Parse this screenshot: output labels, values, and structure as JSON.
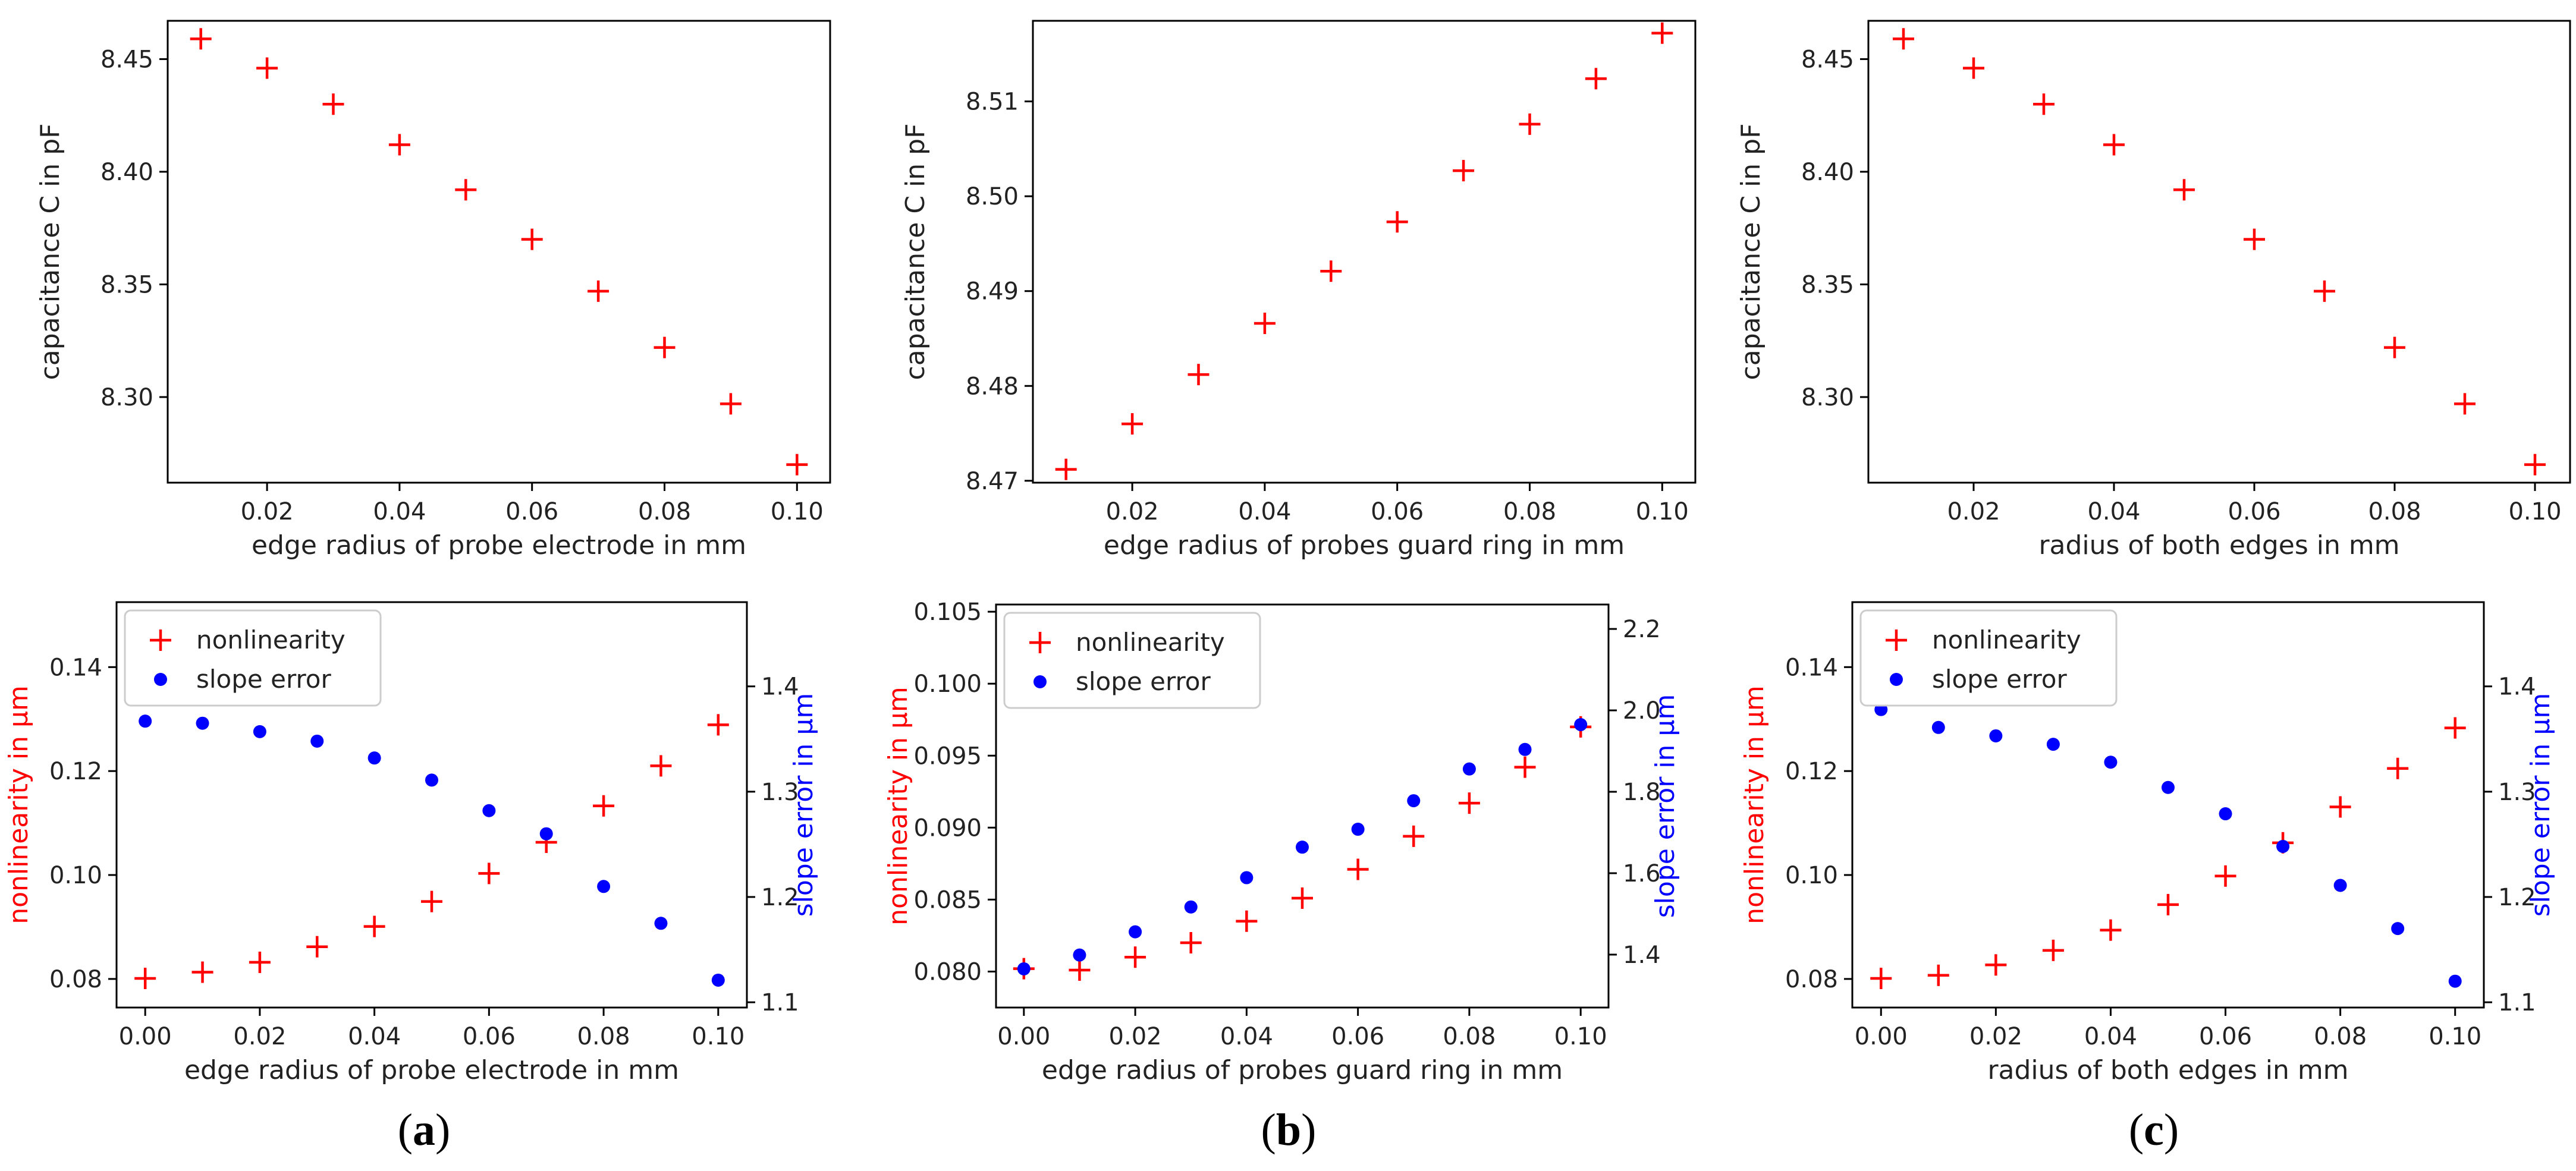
{
  "colors": {
    "nonlinearity": "#ff0000",
    "slope": "#0000ff",
    "axis": "#000000"
  },
  "panel_labels": [
    "a",
    "b",
    "c"
  ],
  "chart_data": [
    {
      "type": "scatter",
      "panel": "a-top",
      "title": "",
      "xlabel": "edge radius of probe electrode in mm",
      "ylabel": "capacitance C in pF",
      "xlim": [
        0.005,
        0.105
      ],
      "ylim": [
        8.262,
        8.467
      ],
      "xticks": [
        0.02,
        0.04,
        0.06,
        0.08,
        0.1
      ],
      "xtick_labels": [
        "0.02",
        "0.04",
        "0.06",
        "0.08",
        "0.10"
      ],
      "yticks": [
        8.3,
        8.35,
        8.4,
        8.45
      ],
      "ytick_labels": [
        "8.30",
        "8.35",
        "8.40",
        "8.45"
      ],
      "grid": false,
      "marker": "+",
      "x": [
        0.01,
        0.02,
        0.03,
        0.04,
        0.05,
        0.06,
        0.07,
        0.08,
        0.09,
        0.1
      ],
      "y": [
        8.459,
        8.446,
        8.43,
        8.412,
        8.392,
        8.37,
        8.347,
        8.322,
        8.297,
        8.27
      ]
    },
    {
      "type": "scatter",
      "panel": "b-top",
      "title": "",
      "xlabel": "edge radius of probes guard ring in mm",
      "ylabel": "capacitance C in pF",
      "xlim": [
        0.005,
        0.105
      ],
      "ylim": [
        8.4698,
        8.5185
      ],
      "xticks": [
        0.02,
        0.04,
        0.06,
        0.08,
        0.1
      ],
      "xtick_labels": [
        "0.02",
        "0.04",
        "0.06",
        "0.08",
        "0.10"
      ],
      "yticks": [
        8.47,
        8.48,
        8.49,
        8.5,
        8.51
      ],
      "ytick_labels": [
        "8.47",
        "8.48",
        "8.49",
        "8.50",
        "8.51"
      ],
      "grid": false,
      "marker": "+",
      "x": [
        0.01,
        0.02,
        0.03,
        0.04,
        0.05,
        0.06,
        0.07,
        0.08,
        0.09,
        0.1
      ],
      "y": [
        8.4712,
        8.476,
        8.4812,
        8.4866,
        8.4921,
        8.4973,
        8.5027,
        8.5076,
        8.5124,
        8.5172
      ]
    },
    {
      "type": "scatter",
      "panel": "c-top",
      "title": "",
      "xlabel": "radius of both edges in mm",
      "ylabel": "capacitance C in pF",
      "xlim": [
        0.005,
        0.105
      ],
      "ylim": [
        8.262,
        8.467
      ],
      "xticks": [
        0.02,
        0.04,
        0.06,
        0.08,
        0.1
      ],
      "xtick_labels": [
        "0.02",
        "0.04",
        "0.06",
        "0.08",
        "0.10"
      ],
      "yticks": [
        8.3,
        8.35,
        8.4,
        8.45
      ],
      "ytick_labels": [
        "8.30",
        "8.35",
        "8.40",
        "8.45"
      ],
      "grid": false,
      "marker": "+",
      "x": [
        0.01,
        0.02,
        0.03,
        0.04,
        0.05,
        0.06,
        0.07,
        0.08,
        0.09,
        0.1
      ],
      "y": [
        8.459,
        8.446,
        8.43,
        8.412,
        8.392,
        8.37,
        8.347,
        8.322,
        8.297,
        8.27
      ]
    },
    {
      "type": "scatter",
      "panel": "a-bottom",
      "title": "",
      "xlabel": "edge radius of probe electrode in mm",
      "ylabel": "nonlinearity in µm",
      "ylabel_right": "slope error in µm",
      "xlim": [
        -0.005,
        0.105
      ],
      "ylim": [
        0.0745,
        0.1525
      ],
      "ylim_right": [
        1.095,
        1.48
      ],
      "xticks": [
        0.0,
        0.02,
        0.04,
        0.06,
        0.08,
        0.1
      ],
      "xtick_labels": [
        "0.00",
        "0.02",
        "0.04",
        "0.06",
        "0.08",
        "0.10"
      ],
      "yticks": [
        0.08,
        0.1,
        0.12,
        0.14
      ],
      "ytick_labels": [
        "0.08",
        "0.10",
        "0.12",
        "0.14"
      ],
      "yticks_right": [
        1.1,
        1.2,
        1.3,
        1.4
      ],
      "ytick_labels_right": [
        "1.1",
        "1.2",
        "1.3",
        "1.4"
      ],
      "legend": [
        "nonlinearity",
        "slope error"
      ],
      "legend_position": "top-left",
      "grid": false,
      "x": [
        0.0,
        0.01,
        0.02,
        0.03,
        0.04,
        0.05,
        0.06,
        0.07,
        0.08,
        0.09,
        0.1
      ],
      "series": [
        {
          "name": "nonlinearity",
          "axis": "left",
          "marker": "+",
          "values": [
            0.0801,
            0.0813,
            0.0832,
            0.0862,
            0.0901,
            0.0949,
            0.1003,
            0.1063,
            0.1133,
            0.121,
            0.1289
          ]
        },
        {
          "name": "slope error",
          "axis": "right",
          "marker": "o",
          "values": [
            1.367,
            1.365,
            1.357,
            1.348,
            1.332,
            1.311,
            1.282,
            1.26,
            1.21,
            1.175,
            1.121
          ]
        }
      ]
    },
    {
      "type": "scatter",
      "panel": "b-bottom",
      "title": "",
      "xlabel": "edge radius of probes guard ring in mm",
      "ylabel": "nonlinearity in µm",
      "ylabel_right": "slope error in µm",
      "xlim": [
        -0.005,
        0.105
      ],
      "ylim": [
        0.0775,
        0.1055
      ],
      "ylim_right": [
        1.27,
        2.26
      ],
      "xticks": [
        0.0,
        0.02,
        0.04,
        0.06,
        0.08,
        0.1
      ],
      "xtick_labels": [
        "0.00",
        "0.02",
        "0.04",
        "0.06",
        "0.08",
        "0.10"
      ],
      "yticks": [
        0.08,
        0.085,
        0.09,
        0.095,
        0.1,
        0.105
      ],
      "ytick_labels": [
        "0.080",
        "0.085",
        "0.090",
        "0.095",
        "0.100",
        "0.105"
      ],
      "yticks_right": [
        1.4,
        1.6,
        1.8,
        2.0,
        2.2
      ],
      "ytick_labels_right": [
        "1.4",
        "1.6",
        "1.8",
        "2.0",
        "2.2"
      ],
      "legend": [
        "nonlinearity",
        "slope error"
      ],
      "legend_position": "top-left",
      "grid": false,
      "x": [
        0.0,
        0.01,
        0.02,
        0.03,
        0.04,
        0.05,
        0.06,
        0.07,
        0.08,
        0.09,
        0.1
      ],
      "series": [
        {
          "name": "nonlinearity",
          "axis": "left",
          "marker": "+",
          "values": [
            0.0802,
            0.0801,
            0.081,
            0.082,
            0.0835,
            0.0851,
            0.0871,
            0.0894,
            0.0917,
            0.0942,
            0.097
          ]
        },
        {
          "name": "slope error",
          "axis": "right",
          "marker": "o",
          "values": [
            1.365,
            1.399,
            1.456,
            1.517,
            1.589,
            1.664,
            1.708,
            1.778,
            1.856,
            1.904,
            1.965
          ]
        }
      ]
    },
    {
      "type": "scatter",
      "panel": "c-bottom",
      "title": "",
      "xlabel": "radius of both edges in mm",
      "ylabel": "nonlinearity in µm",
      "ylabel_right": "slope error in µm",
      "xlim": [
        -0.005,
        0.105
      ],
      "ylim": [
        0.0745,
        0.1525
      ],
      "ylim_right": [
        1.095,
        1.48
      ],
      "xticks": [
        0.0,
        0.02,
        0.04,
        0.06,
        0.08,
        0.1
      ],
      "xtick_labels": [
        "0.00",
        "0.02",
        "0.04",
        "0.06",
        "0.08",
        "0.10"
      ],
      "yticks": [
        0.08,
        0.1,
        0.12,
        0.14
      ],
      "ytick_labels": [
        "0.08",
        "0.10",
        "0.12",
        "0.14"
      ],
      "yticks_right": [
        1.1,
        1.2,
        1.3,
        1.4
      ],
      "ytick_labels_right": [
        "1.1",
        "1.2",
        "1.3",
        "1.4"
      ],
      "legend": [
        "nonlinearity",
        "slope error"
      ],
      "legend_position": "top-left",
      "grid": false,
      "x": [
        0.0,
        0.01,
        0.02,
        0.03,
        0.04,
        0.05,
        0.06,
        0.07,
        0.08,
        0.09,
        0.1
      ],
      "series": [
        {
          "name": "nonlinearity",
          "axis": "left",
          "marker": "+",
          "values": [
            0.0801,
            0.0807,
            0.0827,
            0.0855,
            0.0894,
            0.0943,
            0.0998,
            0.1062,
            0.1131,
            0.1205,
            0.1283
          ]
        },
        {
          "name": "slope error",
          "axis": "right",
          "marker": "o",
          "values": [
            1.378,
            1.361,
            1.353,
            1.345,
            1.328,
            1.304,
            1.279,
            1.248,
            1.211,
            1.17,
            1.12
          ]
        }
      ]
    }
  ]
}
